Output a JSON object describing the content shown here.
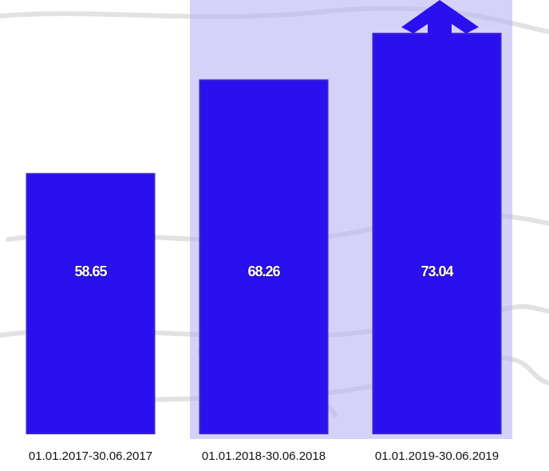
{
  "chart_data": {
    "type": "bar",
    "categories": [
      "01.01.2017-30.06.2017",
      "01.01.2018-30.06.2018",
      "01.01.2019-30.06.2019"
    ],
    "values": [
      58.65,
      68.26,
      73.04
    ],
    "color": "#2a10ee",
    "ylim": [
      32,
      76
    ]
  }
}
